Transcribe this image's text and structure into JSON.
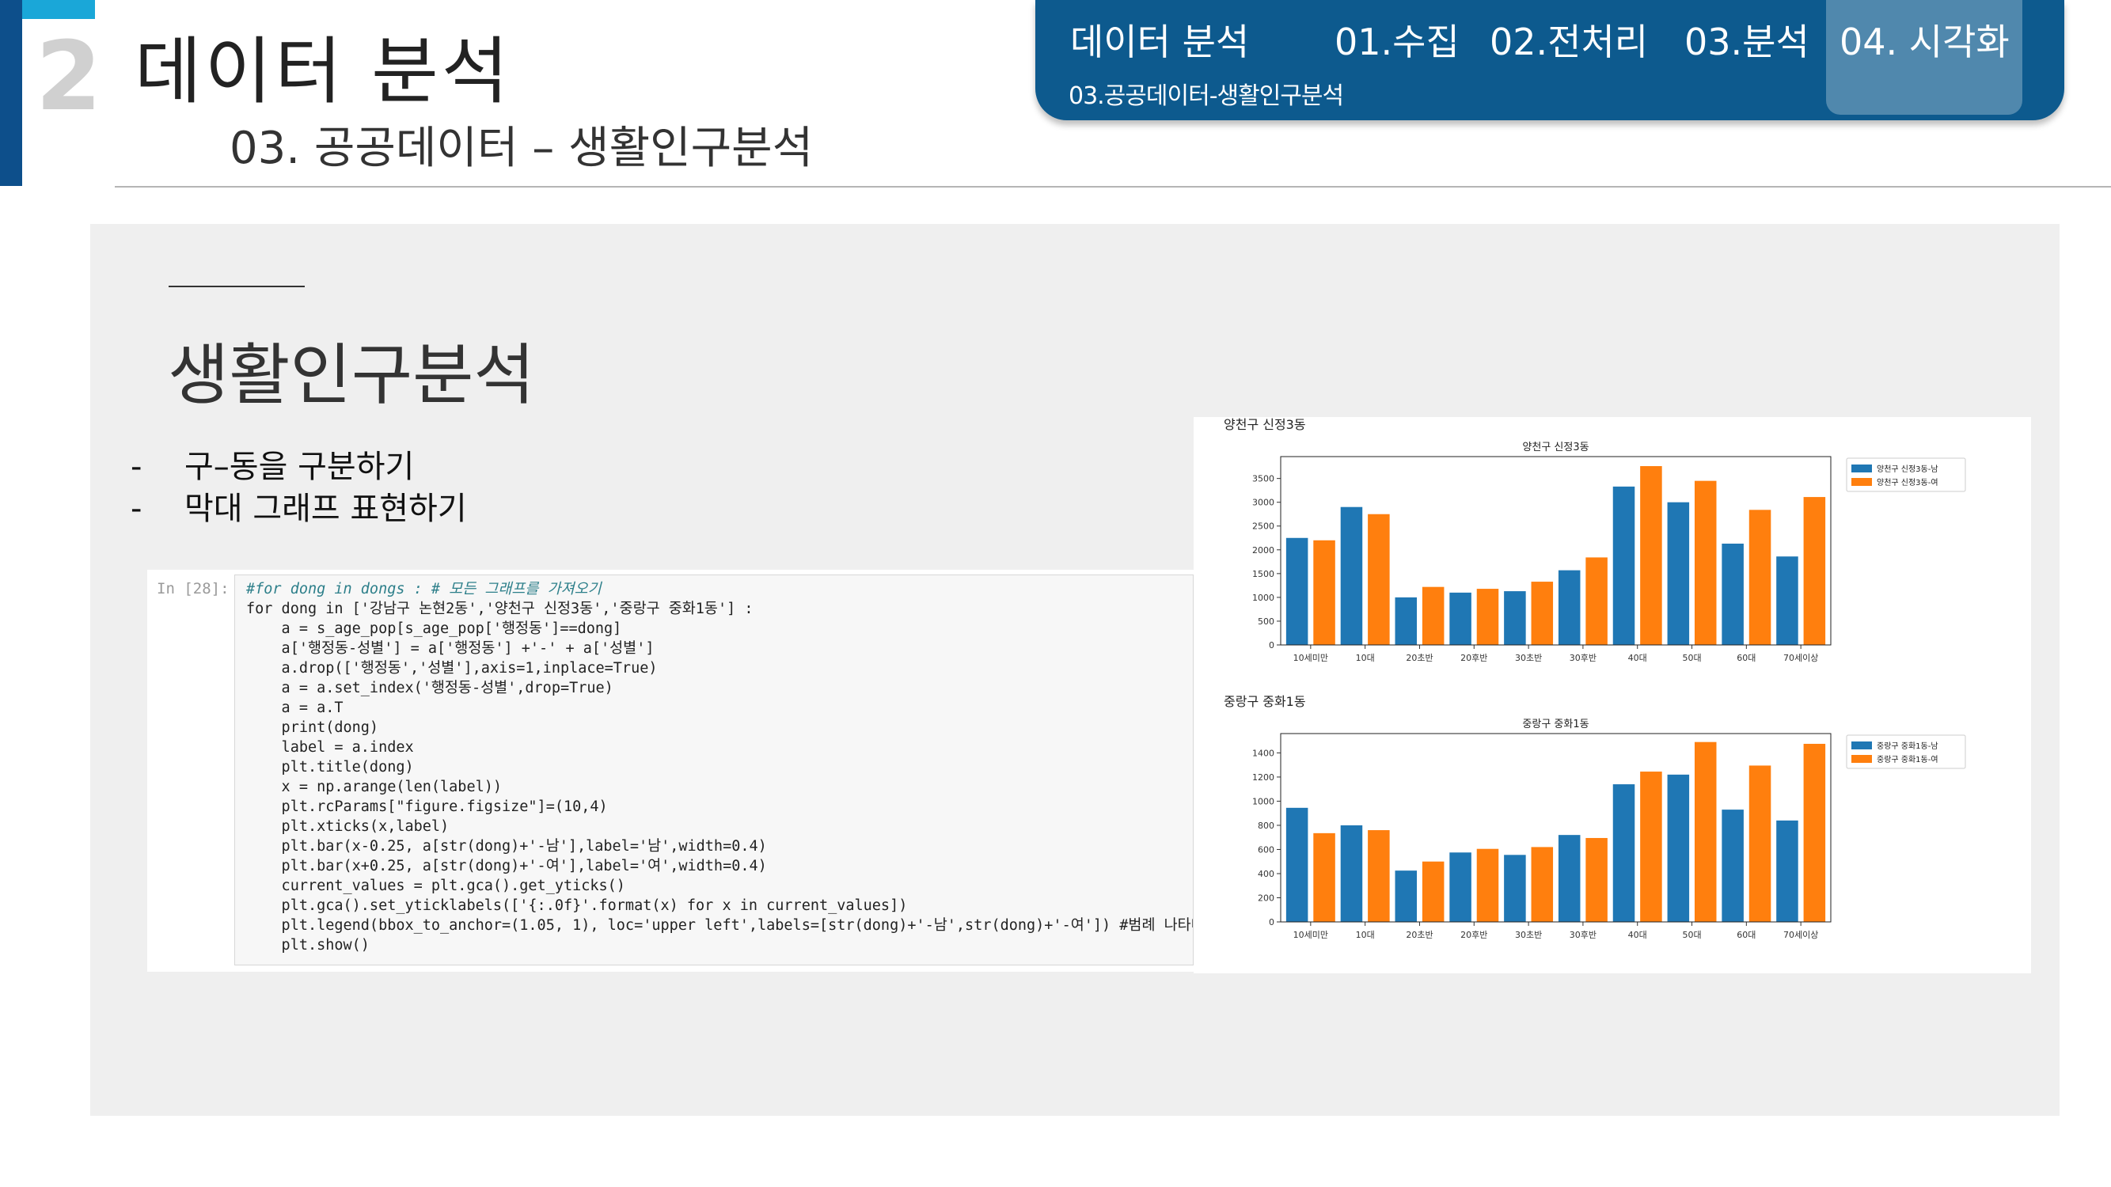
{
  "header": {
    "section_number": "2",
    "title": "데이터 분석",
    "subtitle": "03. 공공데이터 – 생활인구분석"
  },
  "nav": {
    "items": [
      "데이터 분석",
      "01.수집",
      "02.전처리",
      "03.분석",
      "04. 시각화"
    ],
    "active_index": 4,
    "breadcrumb": "03.공공데이터-생활인구분석"
  },
  "content": {
    "heading": "생활인구분석",
    "bullets": [
      "구–동을 구분하기",
      "막대 그래프 표현하기"
    ],
    "bullet_dash": "-"
  },
  "code_cell": {
    "prompt": "In [28]:",
    "lines": [
      "#for dong in dongs : # 모든 그래프를 가져오기",
      "for dong in ['강남구 논현2동','양천구 신정3동','중랑구 중화1동'] :",
      "    a = s_age_pop[s_age_pop['행정동']==dong]",
      "    a['행정동-성별'] = a['행정동'] +'-' + a['성별']",
      "    a.drop(['행정동','성별'],axis=1,inplace=True)",
      "    a = a.set_index('행정동-성별',drop=True)",
      "    a = a.T",
      "    print(dong)",
      "    label = a.index",
      "    plt.title(dong)",
      "    x = np.arange(len(label))",
      "    plt.rcParams[\"figure.figsize\"]=(10,4)",
      "    plt.xticks(x,label)",
      "    plt.bar(x-0.25, a[str(dong)+'-남'],label='남',width=0.4)",
      "    plt.bar(x+0.25, a[str(dong)+'-여'],label='여',width=0.4)",
      "    current_values = plt.gca().get_yticks()",
      "    plt.gca().set_yticklabels(['{:.0f}'.format(x) for x in current_values])",
      "    plt.legend(bbox_to_anchor=(1.05, 1), loc='upper left',labels=[str(dong)+'-남',str(dong)+'-여']) #범례 나타내기",
      "    plt.show()"
    ]
  },
  "colors": {
    "male": "#1f77b4",
    "female": "#ff7f0e",
    "nav_bg": "#0d5a8e",
    "accent": "#1aa7d8"
  },
  "chart_data": [
    {
      "type": "bar",
      "printed_label": "양천구 신정3동",
      "title": "양천구 신정3동",
      "categories": [
        "10세미만",
        "10대",
        "20초반",
        "20후반",
        "30초반",
        "30후반",
        "40대",
        "50대",
        "60대",
        "70세이상"
      ],
      "series": [
        {
          "name": "양천구 신정3동-남",
          "values": [
            2250,
            2900,
            1000,
            1100,
            1130,
            1570,
            3330,
            3000,
            2130,
            1860
          ]
        },
        {
          "name": "양천구 신정3동-여",
          "values": [
            2200,
            2750,
            1220,
            1180,
            1330,
            1840,
            3760,
            3450,
            2840,
            3110
          ]
        }
      ],
      "yticks": [
        0,
        500,
        1000,
        1500,
        2000,
        2500,
        3000,
        3500
      ],
      "ylim": [
        0,
        3960
      ],
      "legend": "outside-right"
    },
    {
      "type": "bar",
      "printed_label": "중랑구 중화1동",
      "title": "중랑구 중화1동",
      "categories": [
        "10세미만",
        "10대",
        "20초반",
        "20후반",
        "30초반",
        "30후반",
        "40대",
        "50대",
        "60대",
        "70세이상"
      ],
      "series": [
        {
          "name": "중랑구 중화1동-남",
          "values": [
            945,
            800,
            425,
            575,
            555,
            720,
            1140,
            1220,
            930,
            840
          ]
        },
        {
          "name": "중랑구 중화1동-여",
          "values": [
            735,
            760,
            500,
            605,
            620,
            695,
            1245,
            1490,
            1295,
            1475
          ]
        }
      ],
      "yticks": [
        0,
        200,
        400,
        600,
        800,
        1000,
        1200,
        1400
      ],
      "ylim": [
        0,
        1560
      ],
      "legend": "outside-right"
    }
  ]
}
